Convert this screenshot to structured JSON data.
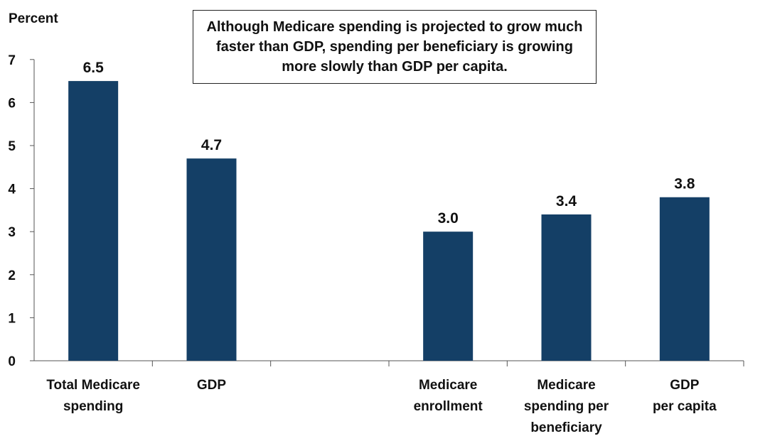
{
  "chart_data": {
    "type": "bar",
    "ylabel": "Percent",
    "ylim": [
      0,
      7
    ],
    "yticks": [
      "0",
      "1",
      "2",
      "3",
      "4",
      "5",
      "6",
      "7"
    ],
    "categories": [
      [
        "Total Medicare",
        "spending"
      ],
      [
        "GDP"
      ],
      [],
      [
        "Medicare",
        "enrollment"
      ],
      [
        "Medicare",
        "spending per",
        "beneficiary"
      ],
      [
        "GDP",
        "per capita"
      ]
    ],
    "values": [
      6.5,
      4.7,
      null,
      3.0,
      3.4,
      3.8
    ],
    "value_labels": [
      "6.5",
      "4.7",
      "",
      "3.0",
      "3.4",
      "3.8"
    ],
    "bar_color": "#143f66",
    "annotation": "Although Medicare spending is projected to grow much faster than GDP, spending per beneficiary is growing more slowly than GDP per capita.",
    "grid": false
  }
}
